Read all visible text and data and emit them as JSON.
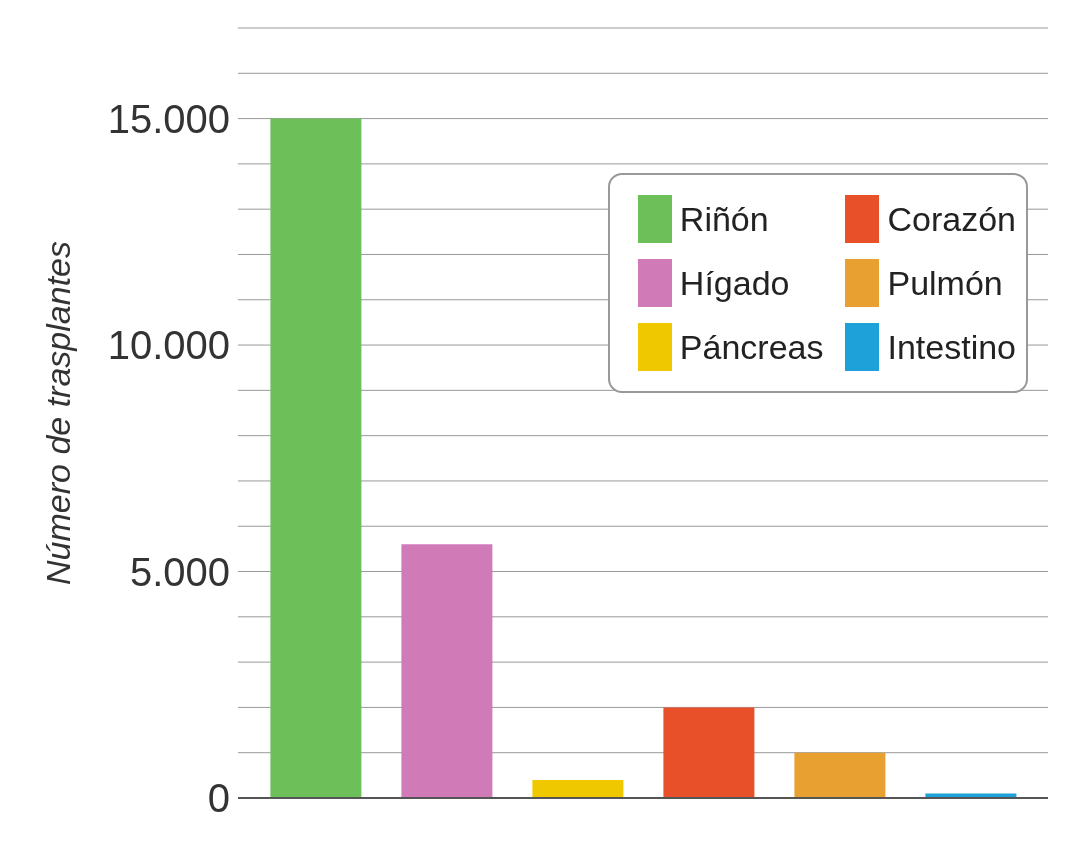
{
  "chart_data": {
    "type": "bar",
    "ylabel": "Número de trasplantes",
    "categories": [
      null
    ],
    "series": [
      {
        "name": "Riñón",
        "color": "#6dbf5a",
        "values": [
          15000
        ]
      },
      {
        "name": "Hígado",
        "color": "#d07ab8",
        "values": [
          5600
        ]
      },
      {
        "name": "Páncreas",
        "color": "#f0c800",
        "values": [
          400
        ]
      },
      {
        "name": "Corazón",
        "color": "#e8502a",
        "values": [
          2000
        ]
      },
      {
        "name": "Pulmón",
        "color": "#e8a030",
        "values": [
          1000
        ]
      },
      {
        "name": "Intestino",
        "color": "#1ea0d8",
        "values": [
          100
        ]
      }
    ],
    "ylim": [
      0,
      17000
    ],
    "yticks": [
      0,
      {
        "value": 1000,
        "label": null
      },
      {
        "value": 2000,
        "label": null
      },
      {
        "value": 3000,
        "label": null
      },
      {
        "value": 4000,
        "label": null
      },
      {
        "value": 5000,
        "label": "5.000"
      },
      {
        "value": 6000,
        "label": null
      },
      {
        "value": 7000,
        "label": null
      },
      {
        "value": 8000,
        "label": null
      },
      {
        "value": 9000,
        "label": null
      },
      {
        "value": 10000,
        "label": "10.000"
      },
      {
        "value": 11000,
        "label": null
      },
      {
        "value": 12000,
        "label": null
      },
      {
        "value": 13000,
        "label": null
      },
      {
        "value": 14000,
        "label": null
      },
      {
        "value": 15000,
        "label": "15.000"
      },
      {
        "value": 16000,
        "label": null
      },
      {
        "value": 17000,
        "label": null
      }
    ],
    "grid": "y",
    "legend": "top right",
    "tick_labels": "y"
  }
}
